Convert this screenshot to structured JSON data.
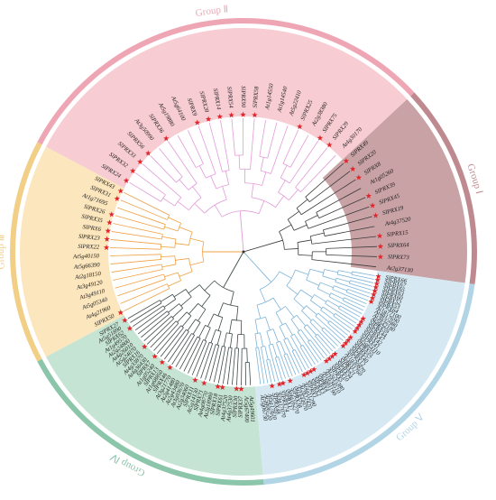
{
  "groups": [
    {
      "id": "I",
      "label": "Group Ⅰ",
      "color": "#bf8a8f",
      "fill": "#c9a2a5",
      "line": "#3a3a3a"
    },
    {
      "id": "II",
      "label": "Group Ⅱ",
      "color": "#eea6b4",
      "fill": "#f7ccd3",
      "line": "#e29bd8"
    },
    {
      "id": "III",
      "label": "Group Ⅲ",
      "color": "#f2cf86",
      "fill": "#fbe6bd",
      "line": "#f0a043"
    },
    {
      "id": "IV",
      "label": "Group Ⅳ",
      "color": "#8cc6aa",
      "fill": "#c6e4d3",
      "line": "#3f4a4a"
    },
    {
      "id": "V",
      "label": "Group Ⅴ",
      "color": "#b2d5e6",
      "fill": "#d6e9f3",
      "line": "#7fb4d9"
    }
  ],
  "leaves": {
    "I": [
      "SlPRX49",
      "SlPRX20",
      "SlPRX8",
      "At1g05260",
      "SlPRX39",
      "SlPRX45",
      "SlPRX19",
      "At4g37520",
      "SlPRX15",
      "SlPRX64",
      "SlPRX73",
      "At2g37130"
    ],
    "II": [
      "SlPRX24",
      "SlPRX32",
      "SlPRX33",
      "SlPRX56",
      "At3g50990",
      "SlPRX36",
      "At5g19880",
      "At5g64100",
      "SlPRX9",
      "SlPRX28",
      "SlPRX14",
      "SlPRX54",
      "SlPRX90",
      "SlPRX58",
      "At1g14550",
      "At1g14540",
      "At5g22410",
      "SlPRX25",
      "At2g38380",
      "SlPRX75",
      "SlPRX29",
      "At4g30170"
    ],
    "III": [
      "SlPRX50",
      "At4g21960",
      "At5g05340",
      "At3g49110",
      "At3g49120",
      "At2g18150",
      "At5g66390",
      "At5g40150",
      "SlPRX22",
      "SlPRX23",
      "SlPRX6",
      "SlPRX35",
      "SlPRX26",
      "At1g71695",
      "SlPRX31",
      "SlPRX43"
    ],
    "IV": [
      "At5g49601",
      "At5g67400",
      "SlPRX37",
      "SlPRX30",
      "At4g37530",
      "At4g37520",
      "SlPRX61",
      "SlPRX18",
      "At2g18980",
      "At4g08770",
      "SlPRX71",
      "At5g14130",
      "SlPRX11",
      "At2g34060",
      "At3g03670",
      "At2g43480",
      "At2g41480",
      "At3g21770",
      "SlPRX46",
      "At1g68850",
      "SlPRX13",
      "At1g05240",
      "SlPRX7",
      "At4g36430",
      "At4g33870",
      "SlPRX16",
      "At5g24070",
      "At4g26010",
      "At2g24800",
      "At1g49570",
      "SlPRX62",
      "At5g51890",
      "SlPRX27"
    ],
    "V": [
      "SlPRX66",
      "SlPRX67",
      "SlPRX65",
      "SlPRX63",
      "SlPRX60",
      "SlPRX52",
      "SlPRX53",
      "SlPRX64",
      "At1g77100",
      "At4g17690",
      "At3g32980",
      "At5g42180",
      "SlPRX59",
      "SlPRX44",
      "SlPRX47",
      "SlPRX42",
      "SlPRX41",
      "At5g64110",
      "SlPRX55",
      "SlPRX57",
      "SlPRX40",
      "SlPRX12",
      "At1g30870",
      "At4g31760",
      "SlPRX21",
      "SlPRX34",
      "SlPRX10",
      "SlPRX5",
      "At2g35380",
      "At1g34510",
      "At3g01190",
      "SlPRX4",
      "SlPRX3",
      "SlPRX2",
      "SlPRX1",
      "At4g11290",
      "At2g22420",
      "At1g44970",
      "SlPRX38",
      "At4g16270",
      "SlPRX17",
      "SlPRX74",
      "At3g17070",
      "SlPRX48",
      "At5g17820",
      "At5g06720",
      "At5g06730"
    ]
  }
}
